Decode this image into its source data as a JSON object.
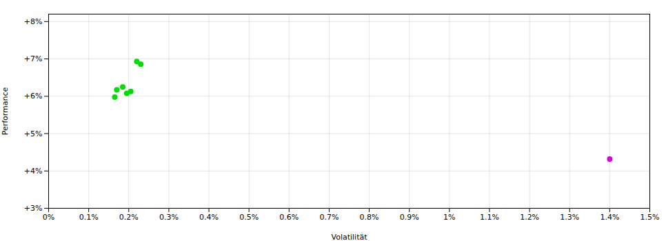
{
  "chart_data": {
    "type": "scatter",
    "xlabel": "Volatilität",
    "ylabel": "Performance",
    "series": [
      {
        "color": "#00dd00",
        "x": [
          0.0022,
          0.0023,
          0.0017,
          0.00185,
          0.00195,
          0.00165,
          0.00205
        ],
        "values": [
          0.0693,
          0.0686,
          0.0617,
          0.0625,
          0.0608,
          0.0598,
          0.0613
        ]
      },
      {
        "color": "#dd00dd",
        "x": [
          0.014
        ],
        "values": [
          0.0432
        ]
      }
    ],
    "xlim": [
      0.0,
      0.015
    ],
    "ylim": [
      0.03,
      0.082
    ],
    "xticks": [
      {
        "value": 0,
        "label": "0%"
      },
      {
        "value": 0.001,
        "label": "0.1%"
      },
      {
        "value": 0.002,
        "label": "0.2%"
      },
      {
        "value": 0.003,
        "label": "0.3%"
      },
      {
        "value": 0.004,
        "label": "0.4%"
      },
      {
        "value": 0.005,
        "label": "0.5%"
      },
      {
        "value": 0.006,
        "label": "0.6%"
      },
      {
        "value": 0.007,
        "label": "0.7%"
      },
      {
        "value": 0.008,
        "label": "0.8%"
      },
      {
        "value": 0.009,
        "label": "0.9%"
      },
      {
        "value": 0.01,
        "label": "1%"
      },
      {
        "value": 0.011,
        "label": "1.1%"
      },
      {
        "value": 0.012,
        "label": "1.2%"
      },
      {
        "value": 0.013,
        "label": "1.3%"
      },
      {
        "value": 0.014,
        "label": "1.4%"
      },
      {
        "value": 0.015,
        "label": "1.5%"
      }
    ],
    "yticks": [
      {
        "value": 0.03,
        "label": "+3%"
      },
      {
        "value": 0.04,
        "label": "+4%"
      },
      {
        "value": 0.05,
        "label": "+5%"
      },
      {
        "value": 0.06,
        "label": "+6%"
      },
      {
        "value": 0.07,
        "label": "+7%"
      },
      {
        "value": 0.08,
        "label": "+8%"
      }
    ],
    "grid": true
  }
}
